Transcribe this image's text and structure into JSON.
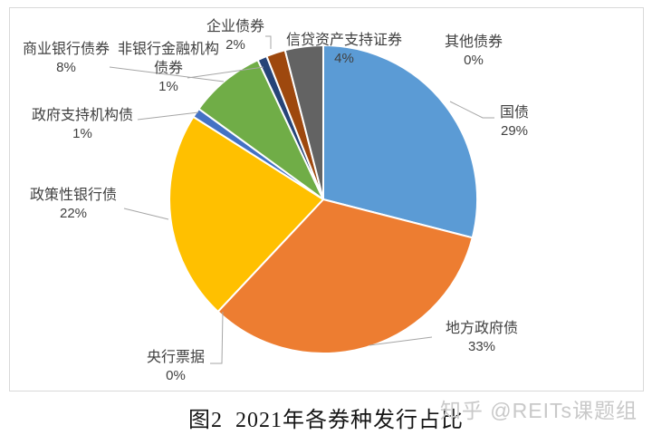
{
  "figure": {
    "caption": "图2  2021年各券种发行占比",
    "watermark": "知乎 @REITs课题组"
  },
  "chart_data": {
    "type": "pie",
    "title": "图2 2021年各券种发行占比",
    "start_angle_deg": 0,
    "direction": "clockwise",
    "legend": "none",
    "slice_border_color": "#ffffff",
    "leader_line_color": "#a6a6a6",
    "slices": [
      {
        "label": "国债",
        "value": 29,
        "percent_label": "29%",
        "color": "#5B9BD5"
      },
      {
        "label": "地方政府债",
        "value": 33,
        "percent_label": "33%",
        "color": "#ED7D31"
      },
      {
        "label": "央行票据",
        "value": 0,
        "percent_label": "0%",
        "color": "#A5A5A5"
      },
      {
        "label": "政策性银行债",
        "value": 22,
        "percent_label": "22%",
        "color": "#FFC000"
      },
      {
        "label": "政府支持机构债",
        "value": 1,
        "percent_label": "1%",
        "color": "#4472C4"
      },
      {
        "label": "商业银行债券",
        "value": 8,
        "percent_label": "8%",
        "color": "#70AD47"
      },
      {
        "label": "非银行金融机构债券",
        "value": 1,
        "percent_label": "1%",
        "color": "#264478"
      },
      {
        "label": "企业债券",
        "value": 2,
        "percent_label": "2%",
        "color": "#9E480E"
      },
      {
        "label": "信贷资产支持证券",
        "value": 4,
        "percent_label": "4%",
        "color": "#636363"
      },
      {
        "label": "其他债券",
        "value": 0,
        "percent_label": "0%",
        "color": "#997300"
      }
    ]
  }
}
